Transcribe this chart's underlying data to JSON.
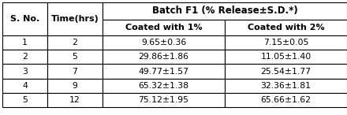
{
  "col_headers": [
    "S. No.",
    "Time(hrs)",
    "Coated with 1%",
    "Coated with 2%"
  ],
  "merged_header": "Batch F1 (% Release±S.D.*)",
  "rows": [
    [
      "1",
      "2",
      "9.65±0.36",
      "7.15±0.05"
    ],
    [
      "2",
      "5",
      "29.86±1.86",
      "11.05±1.40"
    ],
    [
      "3",
      "7",
      "49.77±1.57",
      "25.54±1.77"
    ],
    [
      "4",
      "9",
      "65.32±1.38",
      "32.36±1.81"
    ],
    [
      "5",
      "12",
      "75.12±1.95",
      "65.66±1.62"
    ]
  ],
  "cell_bg": "#ffffff",
  "border_color": "#000000",
  "text_color": "#000000",
  "merged_header_fontsize": 8.5,
  "subheader_fontsize": 8.0,
  "cell_fontsize": 7.8
}
